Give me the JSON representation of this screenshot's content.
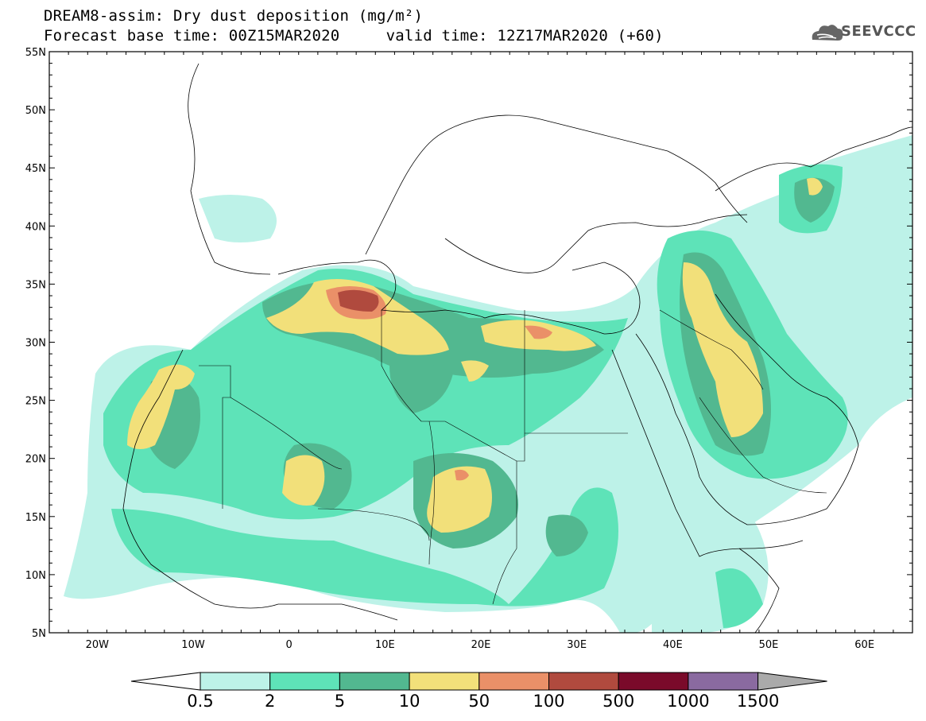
{
  "title": {
    "line1": "DREAM8-assim: Dry dust deposition (mg/m²)",
    "line2_base": "Forecast base time: 00Z15MAR2020",
    "line2_valid": "valid time: 12Z17MAR2020 (+60)"
  },
  "logo": {
    "text": "SEEVCCC",
    "icon": "cloud-icon"
  },
  "map": {
    "extent": {
      "lon": [
        -25,
        65
      ],
      "lat": [
        5,
        55
      ]
    },
    "lat_labels": [
      "55N",
      "50N",
      "45N",
      "40N",
      "35N",
      "30N",
      "25N",
      "20N",
      "15N",
      "10N",
      "5N"
    ],
    "lon_labels": [
      "20W",
      "10W",
      "0",
      "10E",
      "20E",
      "30E",
      "40E",
      "50E",
      "60E"
    ],
    "lat_values": [
      55,
      50,
      45,
      40,
      35,
      30,
      25,
      20,
      15,
      10,
      5
    ],
    "lon_values": [
      -20,
      -10,
      0,
      10,
      20,
      30,
      40,
      50,
      60
    ]
  },
  "colorbar": {
    "labels": [
      "0.5",
      "2",
      "5",
      "10",
      "50",
      "100",
      "500",
      "1000",
      "1500"
    ],
    "colors": [
      "#bdf2e8",
      "#5ee3b8",
      "#52b890",
      "#f2e07a",
      "#ea9068",
      "#b04a3e",
      "#7a0a2a",
      "#8a6aa0",
      "#aaaaaa"
    ],
    "under_color": "#ffffff"
  },
  "fields": [
    {
      "name": "sahara-main-band",
      "level": 0
    },
    {
      "name": "arabia-band",
      "level": 0
    },
    {
      "name": "tunisia-max",
      "level": 5
    }
  ]
}
